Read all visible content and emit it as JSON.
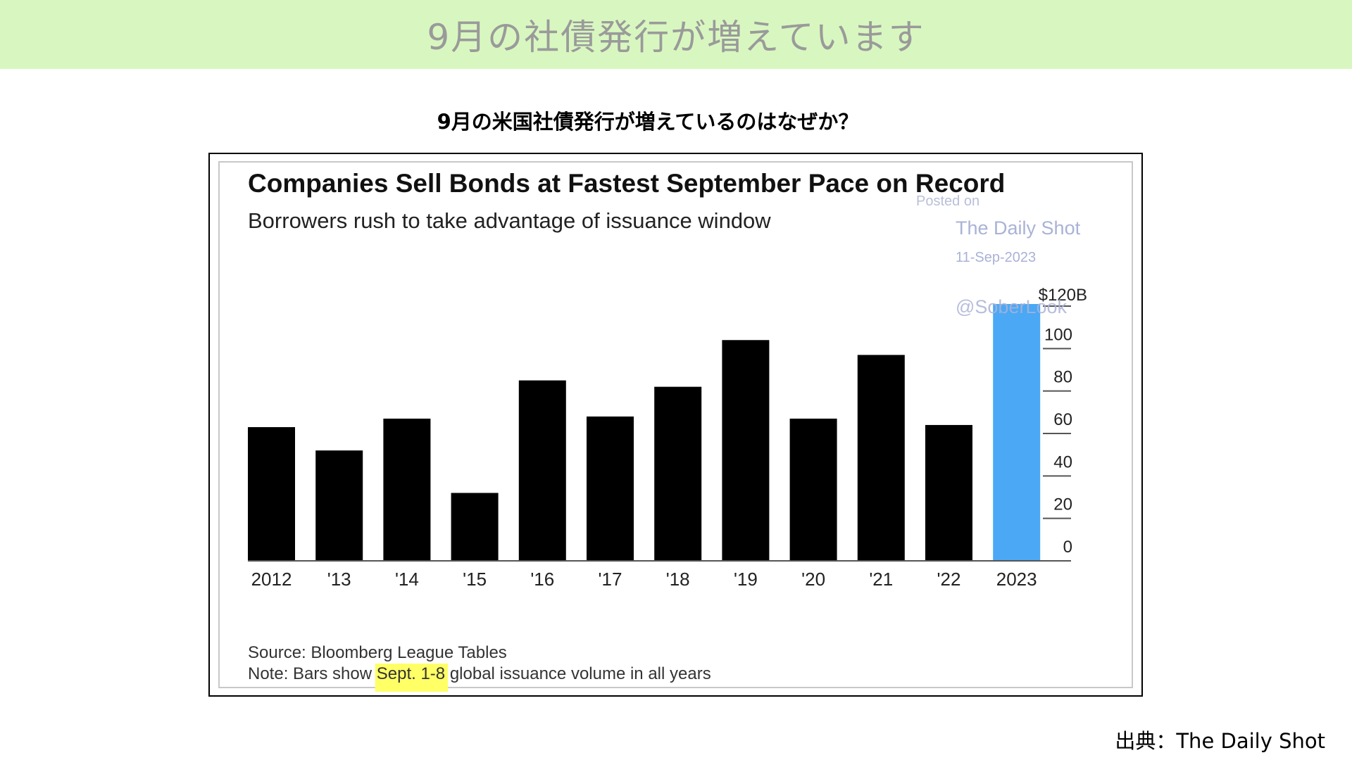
{
  "header": {
    "title": "9月の社債発行が増えています"
  },
  "question": "9月の米国社債発行が増えているのはなぜか？",
  "chart_data": {
    "type": "bar",
    "title": "Companies Sell Bonds at Fastest September Pace on Record",
    "subtitle": "Borrowers rush to take advantage of issuance window",
    "categories": [
      "2012",
      "'13",
      "'14",
      "'15",
      "'16",
      "'17",
      "'18",
      "'19",
      "'20",
      "'21",
      "'22",
      "2023"
    ],
    "values": [
      63,
      52,
      67,
      32,
      85,
      68,
      82,
      104,
      67,
      97,
      64,
      121
    ],
    "ylim": [
      0,
      120
    ],
    "yticks": [
      "0",
      "20",
      "40",
      "60",
      "80",
      "100",
      "$120B"
    ],
    "ytick_values": [
      0,
      20,
      40,
      60,
      80,
      100,
      120
    ],
    "y_axis_side": "right",
    "bar_color": "#000000",
    "highlight_color": "#4aa8f5",
    "highlight_index": 11,
    "source": "Source: Bloomberg League Tables",
    "note_prefix": "Note: Bars show ",
    "note_highlight": "Sept. 1-8",
    "note_suffix": " global issuance volume in all years",
    "note_highlight_color": "#ffff66",
    "watermark": {
      "posted": "Posted on",
      "site": "The Daily Shot",
      "date": "11-Sep-2023",
      "handle": "@SoberLook"
    }
  },
  "credit": "出典：The Daily Shot"
}
